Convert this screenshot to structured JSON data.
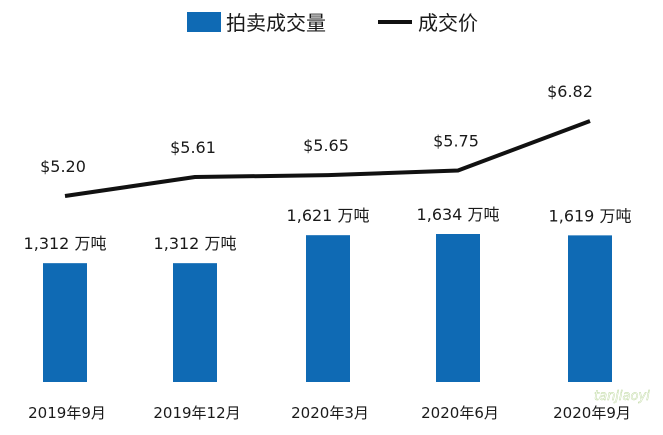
{
  "chart_data": {
    "type": "bar",
    "legend": {
      "placement": "top",
      "items": [
        {
          "label": "拍卖成交量",
          "kind": "bar",
          "color": "#0f6ab4"
        },
        {
          "label": "成交价",
          "kind": "line",
          "color": "#111111"
        }
      ]
    },
    "categories": [
      "2019年9月",
      "2019年12月",
      "2020年3月",
      "2020年6月",
      "2020年9月"
    ],
    "series": [
      {
        "name": "拍卖成交量",
        "type": "bar",
        "values": [
          1312,
          1312,
          1621,
          1634,
          1619
        ],
        "labels": [
          "1,312 万吨",
          "1,312 万吨",
          "1,621 万吨",
          "1,634 万吨",
          "1,619 万吨"
        ]
      },
      {
        "name": "成交价",
        "type": "line",
        "values": [
          5.2,
          5.61,
          5.65,
          5.75,
          6.82
        ],
        "labels": [
          "$5.20",
          "$5.61",
          "$5.65",
          "$5.75",
          "$6.82"
        ]
      }
    ],
    "bar_ylim": [
      0,
      1800
    ],
    "line_ylim": [
      3.0,
      7.0
    ],
    "grid": false
  },
  "watermark": {
    "text": "tanjiaoyi"
  }
}
